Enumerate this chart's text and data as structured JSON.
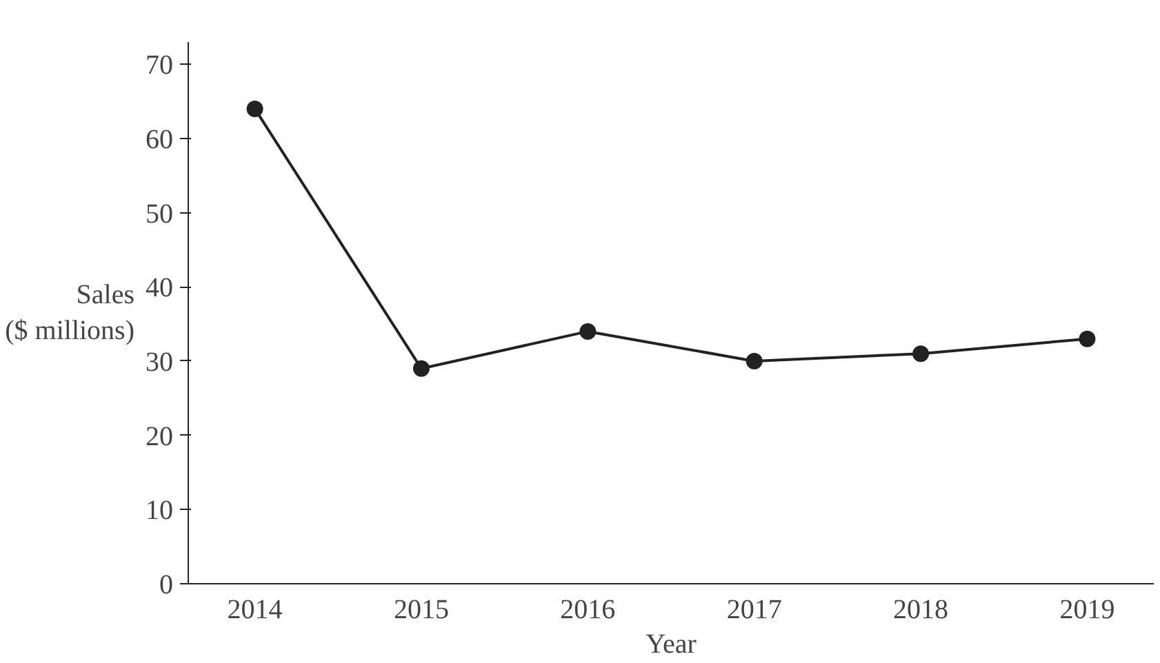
{
  "chart_data": {
    "type": "line",
    "xlabel": "Year",
    "ylabel": "Sales\n($ millions)",
    "categories": [
      "2014",
      "2015",
      "2016",
      "2017",
      "2018",
      "2019"
    ],
    "series": [
      {
        "color": "#222222",
        "values": [
          64,
          29,
          34,
          30,
          31,
          33
        ]
      }
    ],
    "ylim": [
      0,
      73
    ],
    "yticks": [
      0,
      10,
      20,
      30,
      40,
      50,
      60,
      70
    ],
    "marker": "circle",
    "line_style": "solid"
  }
}
